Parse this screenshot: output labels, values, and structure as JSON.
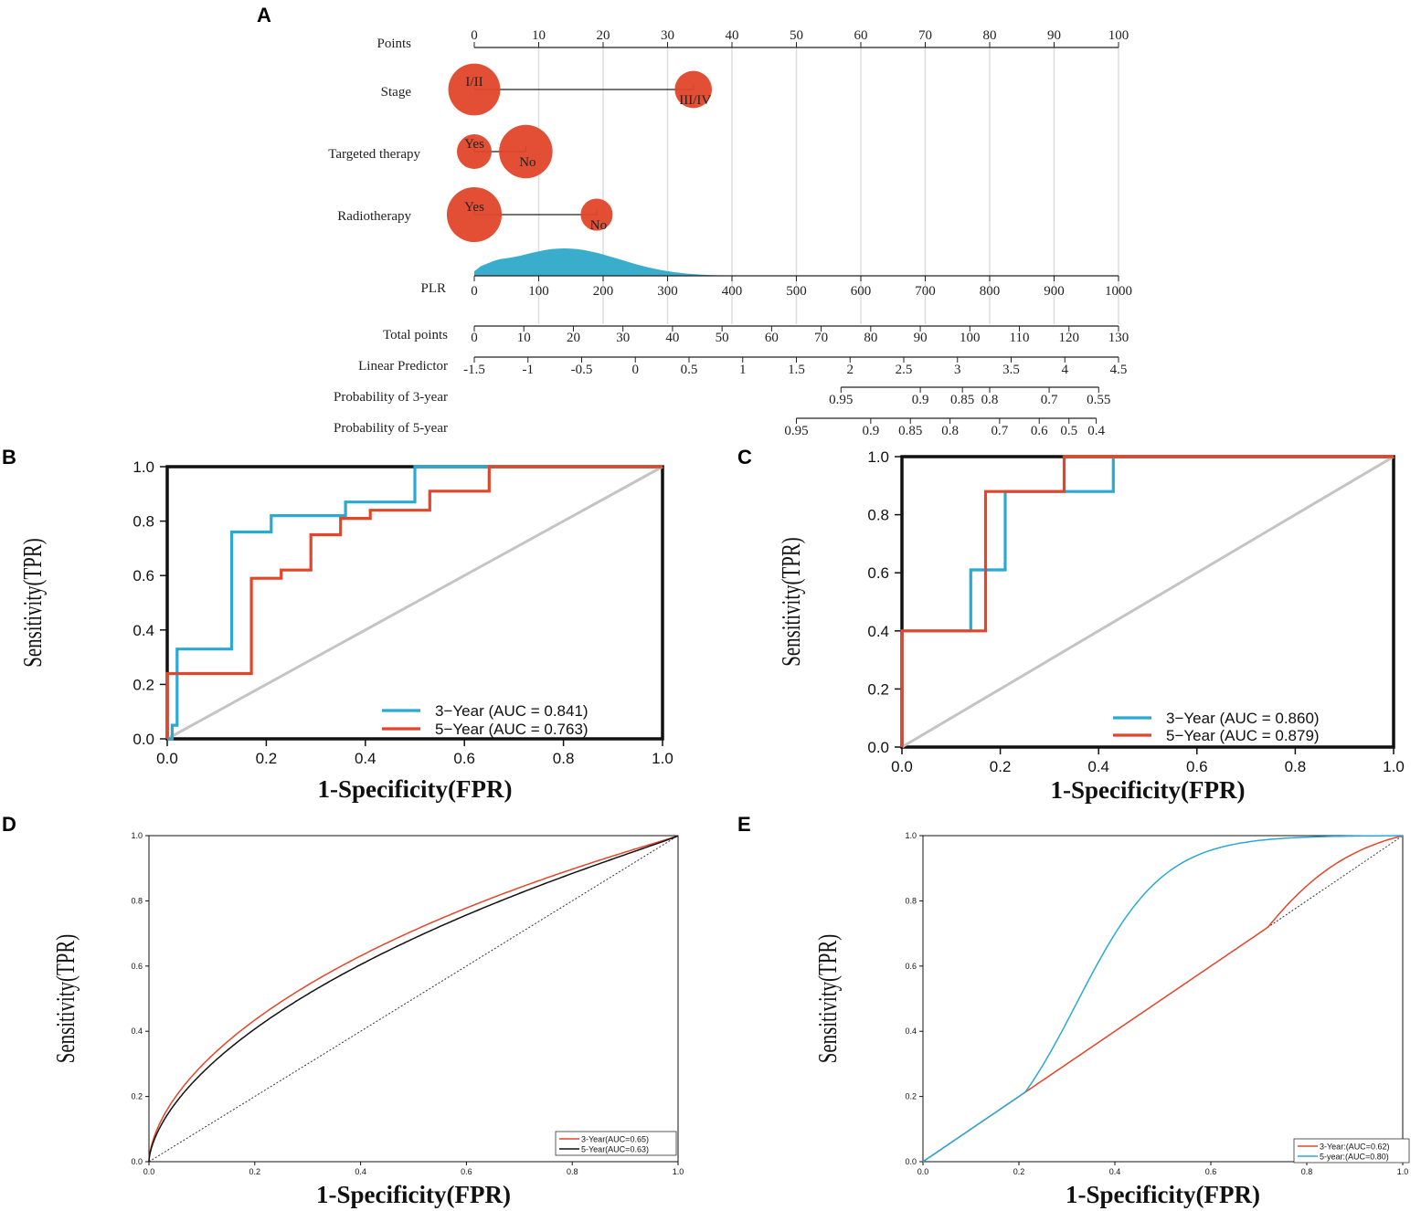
{
  "colors": {
    "red": "#e2462a",
    "cyan": "#2aa9d2",
    "black": "#111111",
    "grey": "#c4c4c4",
    "dot_red": "#e2462a",
    "density": "#3aaccc"
  },
  "panel_labels": [
    "A",
    "B",
    "C",
    "D",
    "E"
  ],
  "chart_data": [
    {
      "panel": "A",
      "type": "nomogram",
      "rows": [
        {
          "label": "Points",
          "ticks": [
            "0",
            "10",
            "20",
            "30",
            "40",
            "50",
            "60",
            "70",
            "80",
            "90",
            "100"
          ],
          "values": [
            0,
            10,
            20,
            30,
            40,
            50,
            60,
            70,
            80,
            90,
            100
          ]
        },
        {
          "label": "Stage",
          "levels": [
            {
              "name": "I/II",
              "points": 0,
              "share": 0.7
            },
            {
              "name": "III/IV",
              "points": 34,
              "share": 0.3
            }
          ]
        },
        {
          "label": "Targeted therapy",
          "levels": [
            {
              "name": "Yes",
              "points": 0,
              "share": 0.25
            },
            {
              "name": "No",
              "points": 8,
              "share": 0.75
            }
          ]
        },
        {
          "label": "Radiotherapy",
          "levels": [
            {
              "name": "Yes",
              "points": 0,
              "share": 0.8
            },
            {
              "name": "No",
              "points": 19,
              "share": 0.2
            }
          ]
        },
        {
          "label": "PLR",
          "ticks": [
            "0",
            "100",
            "200",
            "300",
            "400",
            "500",
            "600",
            "700",
            "800",
            "900",
            "1000"
          ],
          "values": [
            0,
            100,
            200,
            300,
            400,
            500,
            600,
            700,
            800,
            900,
            1000
          ]
        },
        {
          "label": "Total points",
          "ticks": [
            "0",
            "10",
            "20",
            "30",
            "40",
            "50",
            "60",
            "70",
            "80",
            "90",
            "100",
            "110",
            "120",
            "130"
          ],
          "values": [
            0,
            10,
            20,
            30,
            40,
            50,
            60,
            70,
            80,
            90,
            100,
            110,
            120,
            130
          ]
        },
        {
          "label": "Linear Predictor",
          "ticks": [
            "-1.5",
            "-1",
            "-0.5",
            "0",
            "0.5",
            "1",
            "1.5",
            "2",
            "2.5",
            "3",
            "3.5",
            "4",
            "4.5"
          ],
          "values": [
            -1.5,
            -1,
            -0.5,
            0,
            0.5,
            1,
            1.5,
            2,
            2.5,
            3,
            3.5,
            4,
            4.5
          ]
        },
        {
          "label": "Probability of 3-year",
          "ticks": [
            "0.95",
            "0.9",
            "0.85",
            "0.8",
            "0.7",
            "0.55"
          ],
          "total_points": [
            74,
            90,
            98.5,
            104,
            116,
            126
          ]
        },
        {
          "label": "Probability of 5-year",
          "ticks": [
            "0.95",
            "0.9",
            "0.85",
            "0.8",
            "0.7",
            "0.6",
            "0.5",
            "0.4"
          ],
          "total_points": [
            65,
            80,
            88,
            96,
            106,
            114,
            120,
            125.5
          ]
        }
      ]
    },
    {
      "panel": "B",
      "type": "line",
      "xlabel": "1-Specificity(FPR)",
      "ylabel": "Sensitivity(TPR)",
      "xlim": [
        0,
        1
      ],
      "ylim": [
        0,
        1
      ],
      "xticks": [
        "0.0",
        "0.2",
        "0.4",
        "0.6",
        "0.8",
        "1.0"
      ],
      "yticks": [
        "0.0",
        "0.2",
        "0.4",
        "0.6",
        "0.8",
        "1.0"
      ],
      "series": [
        {
          "name": "3−Year (AUC = 0.841)",
          "color": "cyan",
          "x": [
            0,
            0.01,
            0.01,
            0.02,
            0.02,
            0.13,
            0.13,
            0.21,
            0.21,
            0.36,
            0.36,
            0.5,
            0.5,
            1.0
          ],
          "y": [
            0,
            0,
            0.05,
            0.05,
            0.33,
            0.33,
            0.76,
            0.76,
            0.82,
            0.82,
            0.87,
            0.87,
            1.0,
            1.0
          ]
        },
        {
          "name": "5−Year (AUC = 0.763)",
          "color": "red",
          "x": [
            0,
            0,
            0.17,
            0.17,
            0.23,
            0.23,
            0.29,
            0.29,
            0.35,
            0.35,
            0.41,
            0.41,
            0.53,
            0.53,
            0.65,
            0.65,
            1.0
          ],
          "y": [
            0,
            0.24,
            0.24,
            0.59,
            0.59,
            0.62,
            0.62,
            0.75,
            0.75,
            0.81,
            0.81,
            0.84,
            0.84,
            0.91,
            0.91,
            1.0,
            1.0
          ]
        }
      ],
      "legend": "bottom-right"
    },
    {
      "panel": "C",
      "type": "line",
      "xlabel": "1-Specificity(FPR)",
      "ylabel": "Sensitivity(TPR)",
      "xlim": [
        0,
        1
      ],
      "ylim": [
        0,
        1
      ],
      "xticks": [
        "0.0",
        "0.2",
        "0.4",
        "0.6",
        "0.8",
        "1.0"
      ],
      "yticks": [
        "0.0",
        "0.2",
        "0.4",
        "0.6",
        "0.8",
        "1.0"
      ],
      "series": [
        {
          "name": "3−Year (AUC = 0.860)",
          "color": "cyan",
          "x": [
            0,
            0,
            0.14,
            0.14,
            0.21,
            0.21,
            0.33,
            0.33,
            0.43,
            0.43,
            1.0
          ],
          "y": [
            0,
            0.4,
            0.4,
            0.61,
            0.61,
            0.88,
            0.88,
            0.88,
            0.88,
            1.0,
            1.0
          ]
        },
        {
          "name": "5−Year (AUC = 0.879)",
          "color": "red",
          "x": [
            0,
            0,
            0.17,
            0.17,
            0.33,
            0.33,
            1.0
          ],
          "y": [
            0,
            0.4,
            0.4,
            0.88,
            0.88,
            1.0,
            1.0
          ]
        }
      ],
      "legend": "bottom-right"
    },
    {
      "panel": "D",
      "type": "line",
      "xlabel": "1-Specificity(FPR)",
      "ylabel": "Sensitivity(TPR)",
      "xlim": [
        0,
        1
      ],
      "ylim": [
        0,
        1
      ],
      "xticks": [
        "0.0",
        "0.2",
        "0.4",
        "0.6",
        "0.8",
        "1.0"
      ],
      "yticks": [
        "0.0",
        "0.2",
        "0.4",
        "0.6",
        "0.8",
        "1.0"
      ],
      "series": [
        {
          "name": "3-Year(AUC=0.65)",
          "color": "red",
          "model": "binormal",
          "a": 0.55,
          "b": 0.85
        },
        {
          "name": "5-Year(AUC=0.63)",
          "color": "black",
          "model": "binormal",
          "a": 0.48,
          "b": 0.85
        }
      ],
      "legend": "bottom-right"
    },
    {
      "panel": "E",
      "type": "line",
      "xlabel": "1-Specificity(FPR)",
      "ylabel": "Sensitivity(TPR)",
      "xlim": [
        0,
        1
      ],
      "ylim": [
        0,
        1
      ],
      "xticks": [
        "0.0",
        "0.2",
        "0.4",
        "0.6",
        "0.8",
        "1.0"
      ],
      "yticks": [
        "0.0",
        "0.2",
        "0.4",
        "0.6",
        "0.8",
        "1.0"
      ],
      "series": [
        {
          "name": "3-Year:(AUC=0.62)",
          "color": "red",
          "model": "logistic",
          "k": 8.0,
          "c": 0.62
        },
        {
          "name": "5-year:(AUC=0.80)",
          "color": "cyan",
          "model": "logistic",
          "k": 11.0,
          "c": 0.32
        }
      ],
      "legend": "bottom-right"
    }
  ]
}
